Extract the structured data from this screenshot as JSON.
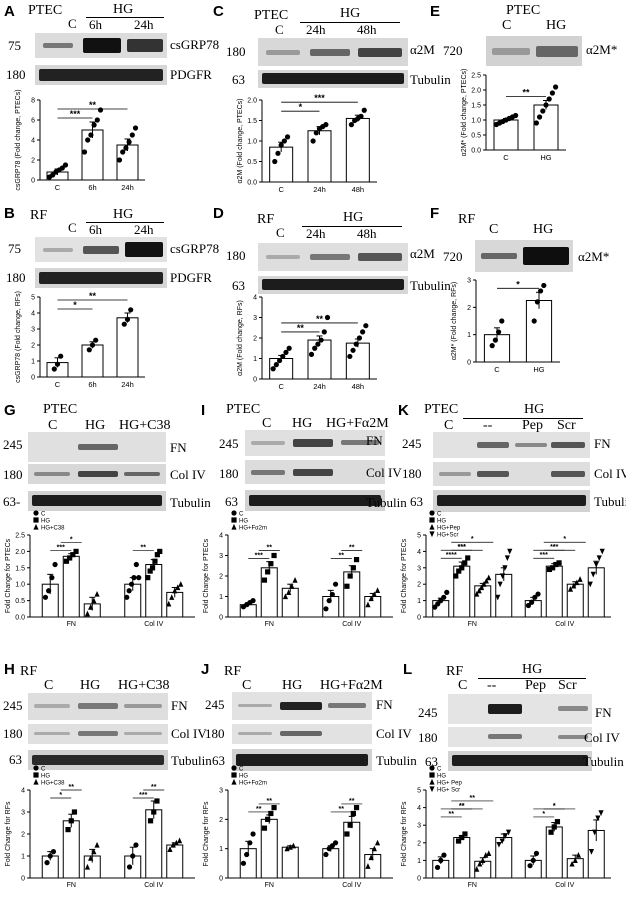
{
  "panels": {
    "A": {
      "letter": "A",
      "cell": "PTEC",
      "control": "C",
      "treatment": "HG",
      "times": [
        "6h",
        "24h"
      ],
      "mw": [
        "75",
        "180"
      ],
      "bands": [
        "csGRP78",
        "PDGFR"
      ]
    },
    "B": {
      "letter": "B",
      "cell": "RF",
      "control": "C",
      "treatment": "HG",
      "times": [
        "6h",
        "24h"
      ],
      "mw": [
        "75",
        "180"
      ],
      "bands": [
        "csGRP78",
        "PDGFR"
      ]
    },
    "C": {
      "letter": "C",
      "cell": "PTEC",
      "control": "C",
      "treatment": "HG",
      "times": [
        "24h",
        "48h"
      ],
      "mw": [
        "180",
        "63"
      ],
      "bands": [
        "α2M",
        "Tubulin"
      ]
    },
    "D": {
      "letter": "D",
      "cell": "RF",
      "control": "C",
      "treatment": "HG",
      "times": [
        "24h",
        "48h"
      ],
      "mw": [
        "180",
        "63"
      ],
      "bands": [
        "α2M",
        "Tubulin"
      ]
    },
    "E": {
      "letter": "E",
      "cell": "PTEC",
      "control": "C",
      "treatment": "HG",
      "mw": [
        "720"
      ],
      "bands": [
        "α2M*"
      ]
    },
    "F": {
      "letter": "F",
      "cell": "RF",
      "control": "C",
      "treatment": "HG",
      "mw": [
        "720"
      ],
      "bands": [
        "α2M*"
      ]
    },
    "G": {
      "letter": "G",
      "cell": "PTEC",
      "lanes": [
        "C",
        "HG",
        "HG+C38"
      ],
      "mw": [
        "245",
        "180",
        "63-"
      ],
      "bands": [
        "FN",
        "Col IV",
        "Tubulin"
      ]
    },
    "H": {
      "letter": "H",
      "cell": "RF",
      "lanes": [
        "C",
        "HG",
        "HG+C38"
      ],
      "mw": [
        "245",
        "180",
        "63"
      ],
      "bands": [
        "FN",
        "Col IV",
        "Tubulin"
      ]
    },
    "I": {
      "letter": "I",
      "cell": "PTEC",
      "lanes": [
        "C",
        "HG",
        "HG+Fα2M"
      ],
      "mw": [
        "245",
        "180",
        "63"
      ],
      "bands": [
        "FN",
        "Col IV",
        "Tubulin"
      ]
    },
    "J": {
      "letter": "J",
      "cell": "RF",
      "lanes": [
        "C",
        "HG",
        "HG+Fα2M"
      ],
      "mw": [
        "245",
        "180",
        "63"
      ],
      "bands": [
        "FN",
        "Col IV",
        "Tubulin"
      ]
    },
    "K": {
      "letter": "K",
      "cell": "PTEC",
      "header": "HG",
      "lanes": [
        "C",
        "--",
        "Pep",
        "Scr"
      ],
      "mw": [
        "245",
        "180",
        "63"
      ],
      "bands": [
        "FN",
        "Col IV",
        "Tubulin"
      ]
    },
    "L": {
      "letter": "L",
      "cell": "RF",
      "header": "HG",
      "lanes": [
        "C",
        "--",
        "Pep",
        "Scr"
      ],
      "mw": [
        "245",
        "180",
        "63"
      ],
      "bands": [
        "FN",
        "Col IV",
        "Tubulin"
      ]
    }
  },
  "chart_data": [
    {
      "id": "A",
      "type": "bar",
      "categories": [
        "C",
        "6h",
        "24h"
      ],
      "values": [
        0.8,
        5.0,
        3.5
      ],
      "errors": [
        0.3,
        0.8,
        0.6
      ],
      "ylabel": "csGRP78 (Fold change, PTECs)",
      "ylim": [
        0,
        8
      ],
      "yticks": [
        "0",
        "2",
        "4",
        "6",
        "8"
      ],
      "sig": [
        "***",
        "**"
      ],
      "points": [
        [
          0.3,
          0.5,
          0.8,
          1.0,
          1.2,
          1.5
        ],
        [
          2.8,
          4.0,
          4.5,
          5.5,
          6.0,
          7.0
        ],
        [
          2.0,
          2.8,
          3.2,
          3.8,
          4.5,
          5.2
        ]
      ]
    },
    {
      "id": "B",
      "type": "bar",
      "categories": [
        "C",
        "6h",
        "24h"
      ],
      "values": [
        0.9,
        2.0,
        3.7
      ],
      "errors": [
        0.3,
        0.2,
        0.3
      ],
      "ylabel": "csGRP78 (Fold change, RFs)",
      "ylim": [
        0,
        5
      ],
      "yticks": [
        "0",
        "1",
        "2",
        "3",
        "4",
        "5"
      ],
      "sig": [
        "*",
        "**"
      ],
      "points": [
        [
          0.5,
          0.8,
          1.3
        ],
        [
          1.7,
          2.0,
          2.3
        ],
        [
          3.3,
          3.6,
          4.2
        ]
      ]
    },
    {
      "id": "C",
      "type": "bar",
      "categories": [
        "C",
        "24h",
        "48h"
      ],
      "values": [
        0.85,
        1.25,
        1.55
      ],
      "errors": [
        0.12,
        0.1,
        0.08
      ],
      "ylabel": "α2M (Fold change, PTECs)",
      "ylim": [
        0,
        2.0
      ],
      "yticks": [
        "0.0",
        "0.5",
        "1.0",
        "1.5",
        "2.0"
      ],
      "sig": [
        "*",
        "***"
      ],
      "points": [
        [
          0.5,
          0.7,
          0.9,
          1.0,
          1.1
        ],
        [
          1.0,
          1.2,
          1.3,
          1.35,
          1.4
        ],
        [
          1.4,
          1.5,
          1.55,
          1.6,
          1.75
        ]
      ]
    },
    {
      "id": "D",
      "type": "bar",
      "categories": [
        "C",
        "24h",
        "48h"
      ],
      "values": [
        1.0,
        1.9,
        1.75
      ],
      "errors": [
        0.15,
        0.2,
        0.2
      ],
      "ylabel": "α2M (Fold change, RFs)",
      "ylim": [
        0,
        4
      ],
      "yticks": [
        "0",
        "1",
        "2",
        "3",
        "4"
      ],
      "sig": [
        "**",
        "**"
      ],
      "points": [
        [
          0.5,
          0.7,
          0.9,
          1.1,
          1.3,
          1.5
        ],
        [
          1.2,
          1.5,
          1.7,
          1.9,
          2.3,
          3.0
        ],
        [
          1.1,
          1.4,
          1.7,
          2.0,
          2.3,
          2.6
        ]
      ]
    },
    {
      "id": "E",
      "type": "bar",
      "categories": [
        "C",
        "HG"
      ],
      "values": [
        1.0,
        1.5
      ],
      "errors": [
        0.05,
        0.15
      ],
      "ylabel": "α2M* (Fold change, PTECs)",
      "ylim": [
        0,
        2.5
      ],
      "yticks": [
        "0.0",
        "0.5",
        "1.0",
        "1.5",
        "2.0",
        "2.5"
      ],
      "sig": [
        "**"
      ],
      "points": [
        [
          0.85,
          0.9,
          0.95,
          1.0,
          1.05,
          1.1,
          1.15
        ],
        [
          0.9,
          1.1,
          1.3,
          1.5,
          1.7,
          1.9,
          2.1
        ]
      ]
    },
    {
      "id": "F",
      "type": "bar",
      "categories": [
        "C",
        "HG"
      ],
      "values": [
        1.0,
        2.25
      ],
      "errors": [
        0.25,
        0.3
      ],
      "ylabel": "α2M* (Fold change, RFs)",
      "ylim": [
        0,
        3
      ],
      "yticks": [
        "0",
        "1",
        "2",
        "3"
      ],
      "sig": [
        "*"
      ],
      "points": [
        [
          0.6,
          0.8,
          1.1,
          1.5
        ],
        [
          1.5,
          2.2,
          2.6,
          2.8
        ]
      ]
    },
    {
      "id": "G",
      "type": "bar",
      "categories": [
        "FN",
        "Col IV"
      ],
      "series": [
        {
          "name": "C",
          "values": [
            1.0,
            1.0
          ],
          "errors": [
            0.3,
            0.2
          ]
        },
        {
          "name": "HG",
          "values": [
            1.85,
            1.6
          ],
          "errors": [
            0.08,
            0.15
          ]
        },
        {
          "name": "HG+C38",
          "values": [
            0.4,
            0.75
          ],
          "errors": [
            0.2,
            0.15
          ]
        }
      ],
      "ylabel": "Fold Change for PTECs",
      "ylim": [
        0,
        2.5
      ],
      "yticks": [
        "0.0",
        "0.5",
        "1.0",
        "1.5",
        "2.0",
        "2.5"
      ],
      "sig": [
        "***",
        "*",
        "**"
      ],
      "points": [
        [
          [
            0.6,
            0.8,
            1.2,
            1.6
          ],
          [
            1.7,
            1.8,
            1.9,
            2.0
          ],
          [
            0.1,
            0.3,
            0.5,
            0.7
          ]
        ],
        [
          [
            0.6,
            0.8,
            1.0,
            1.2,
            1.6,
            1.2
          ],
          [
            1.2,
            1.4,
            1.5,
            1.7,
            1.9,
            2.0
          ],
          [
            0.4,
            0.6,
            0.8,
            0.9,
            1.0
          ]
        ]
      ]
    },
    {
      "id": "H",
      "type": "bar",
      "categories": [
        "FN",
        "Col IV"
      ],
      "series": [
        {
          "name": "C",
          "values": [
            1.0,
            1.0
          ],
          "errors": [
            0.2,
            0.4
          ]
        },
        {
          "name": "HG",
          "values": [
            2.6,
            3.1
          ],
          "errors": [
            0.3,
            0.4
          ]
        },
        {
          "name": "HG+C38",
          "values": [
            1.0,
            1.5
          ],
          "errors": [
            0.3,
            0.1
          ]
        }
      ],
      "ylabel": "Fold Change for RFs",
      "ylim": [
        0,
        4
      ],
      "yticks": [
        "0",
        "1",
        "2",
        "3",
        "4"
      ],
      "sig": [
        "*",
        "**",
        "***",
        "**"
      ],
      "points": [
        [
          [
            0.7,
            1.0,
            1.2
          ],
          [
            2.2,
            2.6,
            3.0
          ],
          [
            0.5,
            0.9,
            1.2,
            1.5
          ]
        ],
        [
          [
            0.5,
            1.0,
            1.5
          ],
          [
            2.6,
            3.0,
            3.5
          ],
          [
            1.3,
            1.5,
            1.6,
            1.7
          ]
        ]
      ]
    },
    {
      "id": "I",
      "type": "bar",
      "categories": [
        "FN",
        "Col IV"
      ],
      "series": [
        {
          "name": "C",
          "values": [
            0.6,
            1.0
          ],
          "errors": [
            0.1,
            0.3
          ]
        },
        {
          "name": "HG",
          "values": [
            2.4,
            2.2
          ],
          "errors": [
            0.3,
            0.3
          ]
        },
        {
          "name": "HG+Fα2m",
          "values": [
            1.4,
            1.0
          ],
          "errors": [
            0.2,
            0.15
          ]
        }
      ],
      "ylabel": "Fold Change for PTECs",
      "ylim": [
        0,
        4
      ],
      "yticks": [
        "0",
        "1",
        "2",
        "3",
        "4"
      ],
      "sig": [
        "***",
        "**",
        "**",
        "**"
      ],
      "points": [
        [
          [
            0.5,
            0.6,
            0.7,
            0.8
          ],
          [
            1.8,
            2.2,
            2.6,
            3.0
          ],
          [
            1.0,
            1.2,
            1.5,
            1.8
          ]
        ],
        [
          [
            0.4,
            0.8,
            1.1,
            1.6
          ],
          [
            1.5,
            2.0,
            2.4,
            2.8
          ],
          [
            0.6,
            0.9,
            1.1,
            1.3
          ]
        ]
      ]
    },
    {
      "id": "J",
      "type": "bar",
      "categories": [
        "FN",
        "Col IV"
      ],
      "series": [
        {
          "name": "C",
          "values": [
            1.0,
            1.0
          ],
          "errors": [
            0.25,
            0.1
          ]
        },
        {
          "name": "HG",
          "values": [
            2.0,
            1.9
          ],
          "errors": [
            0.15,
            0.2
          ]
        },
        {
          "name": "HG+Fα2m",
          "values": [
            1.05,
            0.8
          ],
          "errors": [
            0.05,
            0.2
          ]
        }
      ],
      "ylabel": "Fold Change for RFs",
      "ylim": [
        0,
        3
      ],
      "yticks": [
        "0",
        "1",
        "2",
        "3"
      ],
      "sig": [
        "**",
        "**",
        "**",
        "**"
      ],
      "points": [
        [
          [
            0.5,
            0.8,
            1.2,
            1.5
          ],
          [
            1.7,
            2.0,
            2.2,
            2.4
          ],
          [
            1.0,
            1.05,
            1.1
          ]
        ],
        [
          [
            0.8,
            1.0,
            1.1,
            1.2
          ],
          [
            1.5,
            1.8,
            2.2,
            2.4
          ],
          [
            0.4,
            0.7,
            1.0,
            1.2
          ]
        ]
      ]
    },
    {
      "id": "K",
      "type": "bar",
      "categories": [
        "FN",
        "Col IV"
      ],
      "series": [
        {
          "name": "C",
          "values": [
            1.0,
            1.0
          ],
          "errors": [
            0.15,
            0.2
          ]
        },
        {
          "name": "HG",
          "values": [
            3.1,
            3.1
          ],
          "errors": [
            0.25,
            0.15
          ]
        },
        {
          "name": "HG+Pep",
          "values": [
            1.9,
            2.0
          ],
          "errors": [
            0.15,
            0.15
          ]
        },
        {
          "name": "HG+Scr",
          "values": [
            2.6,
            3.0
          ],
          "errors": [
            0.4,
            0.4
          ]
        }
      ],
      "ylabel": "Fold Change for PTECs",
      "ylim": [
        0,
        5
      ],
      "yticks": [
        "0",
        "1",
        "2",
        "3",
        "4",
        "5"
      ],
      "sig": [
        "****",
        "***",
        "***",
        "*",
        "***",
        "***",
        "*",
        "*"
      ],
      "points": [
        [
          [
            0.6,
            0.8,
            1.0,
            1.2,
            1.5
          ],
          [
            2.5,
            2.8,
            3.0,
            3.3,
            3.6
          ],
          [
            1.4,
            1.6,
            1.8,
            2.0,
            2.2,
            2.4
          ],
          [
            1.2,
            2.0,
            2.5,
            3.0,
            3.6,
            4.0
          ]
        ],
        [
          [
            0.7,
            0.9,
            1.2,
            1.4
          ],
          [
            2.9,
            3.0,
            3.2,
            3.3
          ],
          [
            1.7,
            1.9,
            2.1,
            2.3
          ],
          [
            2.0,
            2.6,
            3.2,
            3.6,
            4.0
          ]
        ]
      ]
    },
    {
      "id": "L",
      "type": "bar",
      "categories": [
        "FN",
        "Col IV"
      ],
      "series": [
        {
          "name": "C",
          "values": [
            1.0,
            1.0
          ],
          "errors": [
            0.2,
            0.25
          ]
        },
        {
          "name": "HG",
          "values": [
            2.3,
            2.9
          ],
          "errors": [
            0.1,
            0.25
          ]
        },
        {
          "name": "HG+ Pep",
          "values": [
            0.95,
            1.1
          ],
          "errors": [
            0.2,
            0.2
          ]
        },
        {
          "name": "HG+ Scr",
          "values": [
            2.3,
            2.7
          ],
          "errors": [
            0.2,
            0.6
          ]
        }
      ],
      "ylabel": "Fold Change for RFs",
      "ylim": [
        0,
        5
      ],
      "yticks": [
        "0",
        "1",
        "2",
        "3",
        "4",
        "5"
      ],
      "sig": [
        "**",
        "**",
        "**",
        "**",
        "*",
        "*",
        "*"
      ],
      "points": [
        [
          [
            0.6,
            1.0,
            1.3
          ],
          [
            2.1,
            2.3,
            2.5
          ],
          [
            0.5,
            0.8,
            1.0,
            1.3,
            1.4
          ],
          [
            1.9,
            2.1,
            2.4,
            2.6
          ]
        ],
        [
          [
            0.7,
            1.0,
            1.4
          ],
          [
            2.6,
            2.9,
            3.2
          ],
          [
            0.8,
            1.0,
            1.3
          ],
          [
            1.5,
            2.6,
            3.4,
            3.7
          ]
        ]
      ]
    }
  ]
}
